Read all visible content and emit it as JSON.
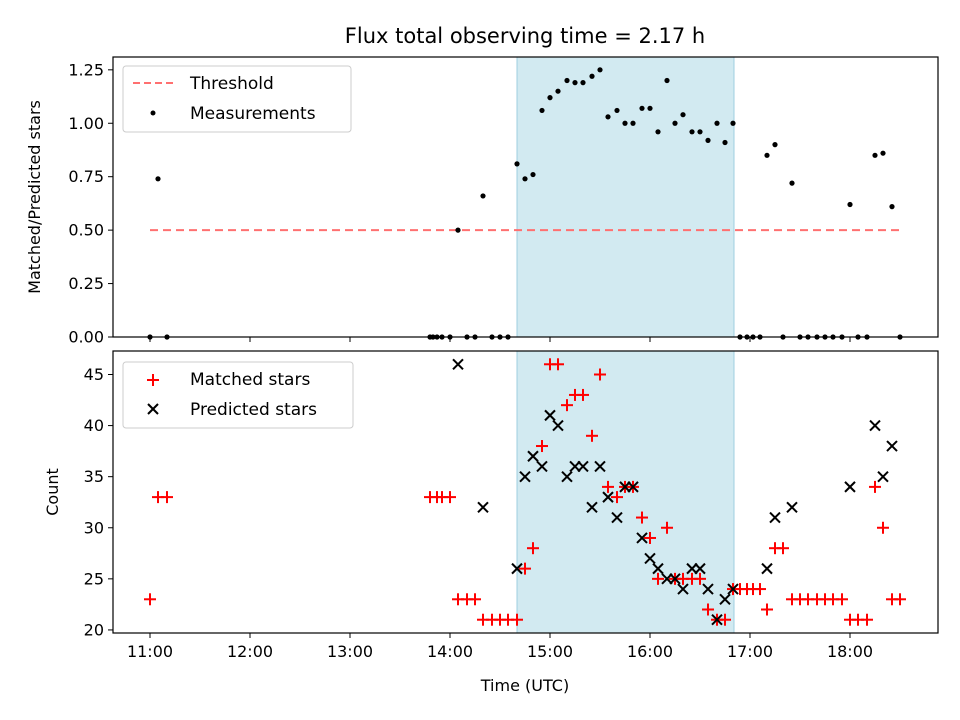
{
  "chart_data": {
    "title": "Flux total observing time = 2.17 h",
    "time_ticks": [
      "11:00",
      "12:00",
      "13:00",
      "14:00",
      "15:00",
      "16:00",
      "17:00",
      "18:00"
    ],
    "xlabel": "Time (UTC)",
    "xlim_hours": [
      10.63,
      18.88
    ],
    "observing_window_hours": [
      14.67,
      16.84
    ],
    "band_color": "#add8e6",
    "panels": [
      {
        "type": "scatter",
        "ylabel": "Matched/Predicted stars",
        "ylim": [
          0,
          1.31
        ],
        "yticks": [
          "0.00",
          "0.25",
          "0.50",
          "0.75",
          "1.00",
          "1.25"
        ],
        "ytick_values": [
          0,
          0.25,
          0.5,
          0.75,
          1.0,
          1.25
        ],
        "legend_position": "top-left",
        "threshold": {
          "name": "Threshold",
          "value": 0.5,
          "x_range": [
            11.0,
            18.5
          ],
          "color": "#ff7070"
        },
        "series": [
          {
            "name": "Measurements",
            "color": "#000000",
            "marker": "dot",
            "x": [
              11.0,
              11.08,
              11.17,
              13.8,
              13.83,
              13.87,
              13.92,
              14.0,
              14.08,
              14.17,
              14.25,
              14.33,
              14.42,
              14.5,
              14.58,
              14.67,
              14.75,
              14.83,
              14.92,
              15.0,
              15.08,
              15.17,
              15.25,
              15.33,
              15.42,
              15.5,
              15.58,
              15.67,
              15.75,
              15.83,
              15.92,
              16.0,
              16.08,
              16.17,
              16.25,
              16.33,
              16.42,
              16.5,
              16.58,
              16.67,
              16.75,
              16.83,
              16.9,
              16.97,
              17.03,
              17.1,
              17.17,
              17.25,
              17.33,
              17.42,
              17.5,
              17.58,
              17.67,
              17.75,
              17.83,
              17.92,
              18.0,
              18.08,
              18.17,
              18.25,
              18.33,
              18.42,
              18.5
            ],
            "y": [
              0,
              0.74,
              0,
              0,
              0,
              0,
              0,
              0,
              0.5,
              0,
              0,
              0.66,
              0,
              0,
              0,
              0.81,
              0.74,
              0.76,
              1.06,
              1.12,
              1.15,
              1.2,
              1.19,
              1.19,
              1.22,
              1.25,
              1.03,
              1.06,
              1.0,
              1.0,
              1.07,
              1.07,
              0.96,
              1.2,
              1.0,
              1.04,
              0.96,
              0.96,
              0.92,
              1.0,
              0.91,
              1.0,
              0,
              0,
              0,
              0,
              0.85,
              0.9,
              0,
              0.72,
              0,
              0,
              0,
              0,
              0,
              0,
              0.62,
              0,
              0,
              0.85,
              0.86,
              0.61,
              0
            ]
          }
        ]
      },
      {
        "type": "scatter",
        "ylabel": "Count",
        "ylim": [
          19.7,
          47.3
        ],
        "yticks": [
          "20",
          "25",
          "30",
          "35",
          "40",
          "45"
        ],
        "ytick_values": [
          20,
          25,
          30,
          35,
          40,
          45
        ],
        "legend_position": "top-left",
        "series": [
          {
            "name": "Matched stars",
            "color": "#ff0000",
            "marker": "plus",
            "x": [
              11.0,
              11.08,
              11.17,
              13.8,
              13.87,
              13.92,
              14.0,
              14.08,
              14.17,
              14.25,
              14.33,
              14.42,
              14.5,
              14.58,
              14.67,
              14.75,
              14.83,
              14.92,
              15.0,
              15.08,
              15.17,
              15.25,
              15.33,
              15.42,
              15.5,
              15.58,
              15.67,
              15.75,
              15.83,
              15.92,
              16.0,
              16.08,
              16.17,
              16.25,
              16.33,
              16.42,
              16.5,
              16.58,
              16.67,
              16.75,
              16.83,
              16.9,
              16.97,
              17.03,
              17.1,
              17.17,
              17.25,
              17.33,
              17.42,
              17.5,
              17.58,
              17.67,
              17.75,
              17.83,
              17.92,
              18.0,
              18.08,
              18.17,
              18.25,
              18.33,
              18.42,
              18.5
            ],
            "y": [
              23,
              33,
              33,
              33,
              33,
              33,
              33,
              23,
              23,
              23,
              21,
              21,
              21,
              21,
              21,
              26,
              28,
              38,
              46,
              46,
              42,
              43,
              43,
              39,
              45,
              34,
              33,
              34,
              34,
              31,
              29,
              25,
              30,
              25,
              25,
              25,
              25,
              22,
              21,
              21,
              24,
              24,
              24,
              24,
              24,
              22,
              28,
              28,
              23,
              23,
              23,
              23,
              23,
              23,
              23,
              21,
              21,
              21,
              34,
              30,
              23,
              23
            ]
          },
          {
            "name": "Predicted stars",
            "color": "#000000",
            "marker": "x",
            "x": [
              14.08,
              14.33,
              14.67,
              14.75,
              14.83,
              14.92,
              15.0,
              15.08,
              15.17,
              15.25,
              15.33,
              15.42,
              15.5,
              15.58,
              15.67,
              15.75,
              15.83,
              15.92,
              16.0,
              16.08,
              16.17,
              16.25,
              16.33,
              16.42,
              16.5,
              16.58,
              16.67,
              16.75,
              16.83,
              17.17,
              17.25,
              17.42,
              18.0,
              18.25,
              18.33,
              18.42
            ],
            "y": [
              46,
              32,
              26,
              35,
              37,
              36,
              41,
              40,
              35,
              36,
              36,
              32,
              36,
              33,
              31,
              34,
              34,
              29,
              27,
              26,
              25,
              25,
              24,
              26,
              26,
              24,
              21,
              23,
              24,
              26,
              31,
              32,
              34,
              40,
              35,
              38
            ]
          }
        ]
      }
    ]
  }
}
